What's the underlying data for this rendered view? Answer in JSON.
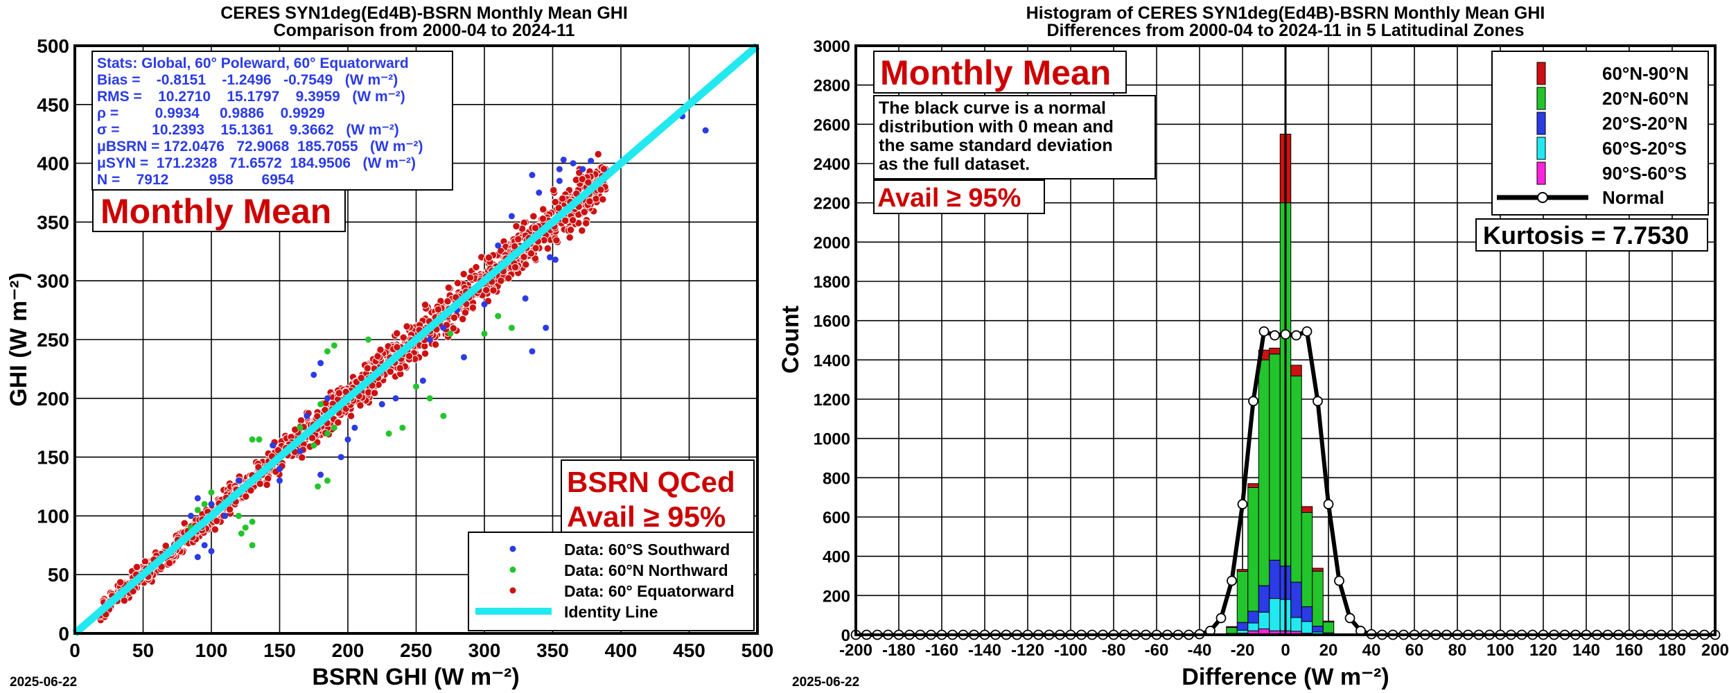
{
  "footer": {
    "date_left": "2025-06-22",
    "date_right": "2025-06-22"
  },
  "chart_data": [
    {
      "type": "scatter",
      "title": "CERES SYN1deg(Ed4B)-BSRN Monthly Mean GHI",
      "subtitle": "Comparison from 2000-04 to 2024-11",
      "xlabel": "BSRN GHI (W m⁻²)",
      "ylabel": "GHI (W m⁻²)",
      "xlim": [
        0,
        500
      ],
      "ylim": [
        0,
        500
      ],
      "xticks": [
        "0",
        "50",
        "100",
        "150",
        "200",
        "250",
        "300",
        "350",
        "400",
        "450",
        "500"
      ],
      "yticks": [
        "0",
        "50",
        "100",
        "150",
        "200",
        "250",
        "300",
        "350",
        "400",
        "450",
        "500"
      ],
      "grid": true,
      "legend_position": "bottom-right",
      "stats": [
        "Stats: Global, 60° Poleward, 60° Equatorward",
        "Bias =    -0.8151    -1.2496   -0.7549   (W m⁻²)",
        "RMS =    10.2710    15.1797    9.3959   (W m⁻²)",
        "ρ =         0.9934     0.9886    0.9929",
        "σ =        10.2393    15.1361    9.3662   (W m⁻²)",
        "μBSRN = 172.0476   72.9068  185.7055   (W m⁻²)",
        "μSYN =  171.2328   71.6572  184.9506   (W m⁻²)",
        "N =    7912          958       6954"
      ],
      "panel_label": "Monthly Mean",
      "qc_label_1": "BSRN QCed",
      "qc_label_2": "Avail ≥ 95%",
      "series": [
        {
          "name": "Data: 60°S Southward",
          "color": "#2b3be6",
          "points": [
            [
              365,
              400
            ],
            [
              378,
              402
            ],
            [
              358,
              403
            ],
            [
              390,
              392
            ],
            [
              445,
              440
            ],
            [
              462,
              428
            ],
            [
              335,
              390
            ],
            [
              372,
              395
            ],
            [
              355,
              385
            ],
            [
              340,
              375
            ],
            [
              320,
              355
            ],
            [
              348,
              320
            ],
            [
              352,
              318
            ],
            [
              345,
              260
            ],
            [
              330,
              285
            ],
            [
              335,
              240
            ],
            [
              285,
              235
            ],
            [
              300,
              280
            ],
            [
              270,
              260
            ],
            [
              255,
              215
            ],
            [
              235,
              200
            ],
            [
              225,
              195
            ],
            [
              205,
              175
            ],
            [
              200,
              165
            ],
            [
              195,
              150
            ],
            [
              180,
              135
            ],
            [
              165,
              155
            ],
            [
              150,
              130
            ],
            [
              110,
              100
            ],
            [
              100,
              70
            ],
            [
              90,
              65
            ],
            [
              95,
              75
            ],
            [
              85,
              100
            ],
            [
              90,
              115
            ],
            [
              100,
              110
            ],
            [
              120,
              130
            ],
            [
              145,
              160
            ],
            [
              150,
              140
            ],
            [
              175,
              220
            ],
            [
              180,
              230
            ],
            [
              170,
              185
            ],
            [
              185,
              200
            ],
            [
              260,
              250
            ],
            [
              280,
              275
            ],
            [
              310,
              330
            ],
            [
              355,
              395
            ]
          ]
        },
        {
          "name": "Data: 60°N Northward",
          "color": "#22c52b",
          "points": [
            [
              130,
              165
            ],
            [
              135,
              165
            ],
            [
              185,
              240
            ],
            [
              190,
              245
            ],
            [
              215,
              250
            ],
            [
              180,
              195
            ],
            [
              190,
              175
            ],
            [
              175,
              160
            ],
            [
              185,
              170
            ],
            [
              178,
              125
            ],
            [
              185,
              130
            ],
            [
              120,
              100
            ],
            [
              125,
              90
            ],
            [
              130,
              95
            ],
            [
              130,
              75
            ],
            [
              122,
              85
            ],
            [
              100,
              120
            ],
            [
              95,
              110
            ],
            [
              90,
              105
            ],
            [
              85,
              90
            ],
            [
              230,
              170
            ],
            [
              240,
              175
            ],
            [
              250,
              210
            ],
            [
              260,
              200
            ],
            [
              270,
              185
            ],
            [
              300,
              255
            ],
            [
              310,
              270
            ],
            [
              320,
              260
            ],
            [
              275,
              255
            ],
            [
              165,
              175
            ]
          ]
        },
        {
          "name": "Data: 60° Equatorward",
          "color": "#cc1111",
          "band": {
            "x_min": 18,
            "x_max": 390,
            "spread": 22,
            "n": 1400
          }
        },
        {
          "name": "Identity Line",
          "color": "#22e8f0"
        }
      ]
    },
    {
      "type": "bar",
      "title": "Histogram of CERES SYN1deg(Ed4B)-BSRN Monthly Mean GHI",
      "subtitle": "Differences from 2000-04 to 2024-11 in 5 Latitudinal Zones",
      "xlabel": "Difference (W m⁻²)",
      "ylabel": "Count",
      "xlim": [
        -200,
        200
      ],
      "ylim": [
        0,
        3000
      ],
      "xticks": [
        "-200",
        "-180",
        "-160",
        "-140",
        "-120",
        "-100",
        "-80",
        "-60",
        "-40",
        "-20",
        "0",
        "20",
        "40",
        "60",
        "80",
        "100",
        "120",
        "140",
        "160",
        "180",
        "200"
      ],
      "yticks": [
        "0",
        "200",
        "400",
        "600",
        "800",
        "1000",
        "1200",
        "1400",
        "1600",
        "1800",
        "2000",
        "2200",
        "2400",
        "2600",
        "2800",
        "3000"
      ],
      "grid": true,
      "legend_position": "top-right",
      "panel_label": "Monthly Mean",
      "note_lines": [
        "The black curve is a normal",
        "distribution with 0 mean and",
        "the same standard deviation",
        "as the full dataset."
      ],
      "avail_label": "Avail ≥ 95%",
      "kurtosis_label": "Kurtosis = 7.7530",
      "bin_width": 5,
      "categories": [
        -25,
        -20,
        -15,
        -10,
        -5,
        0,
        5,
        10,
        15,
        20
      ],
      "series": [
        {
          "name": "90°S-60°S",
          "color": "#ff22dd",
          "values": [
            0,
            8,
            20,
            30,
            20,
            20,
            18,
            8,
            2,
            0
          ]
        },
        {
          "name": "60°S-20°S",
          "color": "#22e8f0",
          "values": [
            2,
            15,
            40,
            85,
            165,
            160,
            70,
            60,
            12,
            2
          ]
        },
        {
          "name": "20°S-20°N",
          "color": "#2b3be6",
          "values": [
            5,
            40,
            60,
            135,
            195,
            170,
            180,
            75,
            30,
            8
          ]
        },
        {
          "name": "20°N-60°N",
          "color": "#22c52b",
          "values": [
            30,
            260,
            630,
            1150,
            1050,
            1850,
            1050,
            480,
            280,
            55
          ]
        },
        {
          "name": "60°N-90°N",
          "color": "#cc1111",
          "values": [
            5,
            10,
            20,
            50,
            30,
            350,
            55,
            30,
            15,
            5
          ]
        }
      ],
      "normal_curve": {
        "name": "Normal",
        "color": "#000000",
        "x": [
          -200,
          -195,
          -190,
          -185,
          -180,
          -175,
          -170,
          -165,
          -160,
          -155,
          -150,
          -145,
          -140,
          -135,
          -130,
          -125,
          -120,
          -115,
          -110,
          -105,
          -100,
          -95,
          -90,
          -85,
          -80,
          -75,
          -70,
          -65,
          -60,
          -55,
          -50,
          -45,
          -40,
          -35,
          -30,
          -25,
          -20,
          -15,
          -10,
          -5,
          0,
          5,
          10,
          15,
          20,
          25,
          30,
          35,
          40,
          45,
          50,
          55,
          60,
          65,
          70,
          75,
          80,
          85,
          90,
          95,
          100,
          105,
          110,
          115,
          120,
          125,
          130,
          135,
          140,
          145,
          150,
          155,
          160,
          165,
          170,
          175,
          180,
          185,
          190,
          195,
          200
        ],
        "y": [
          0,
          0,
          0,
          0,
          0,
          0,
          0,
          0,
          0,
          0,
          0,
          0,
          0,
          0,
          0,
          0,
          0,
          0,
          0,
          0,
          0,
          0,
          0,
          0,
          0,
          0,
          0,
          0,
          0,
          0,
          0,
          0,
          3,
          20,
          85,
          275,
          665,
          1190,
          1545,
          1525,
          1530,
          1525,
          1545,
          1190,
          665,
          275,
          85,
          20,
          3,
          0,
          0,
          0,
          0,
          0,
          0,
          0,
          0,
          0,
          0,
          0,
          0,
          0,
          0,
          0,
          0,
          0,
          0,
          0,
          0,
          0,
          0,
          0,
          0,
          0,
          0,
          0,
          0,
          0,
          0,
          0,
          0
        ]
      }
    }
  ]
}
